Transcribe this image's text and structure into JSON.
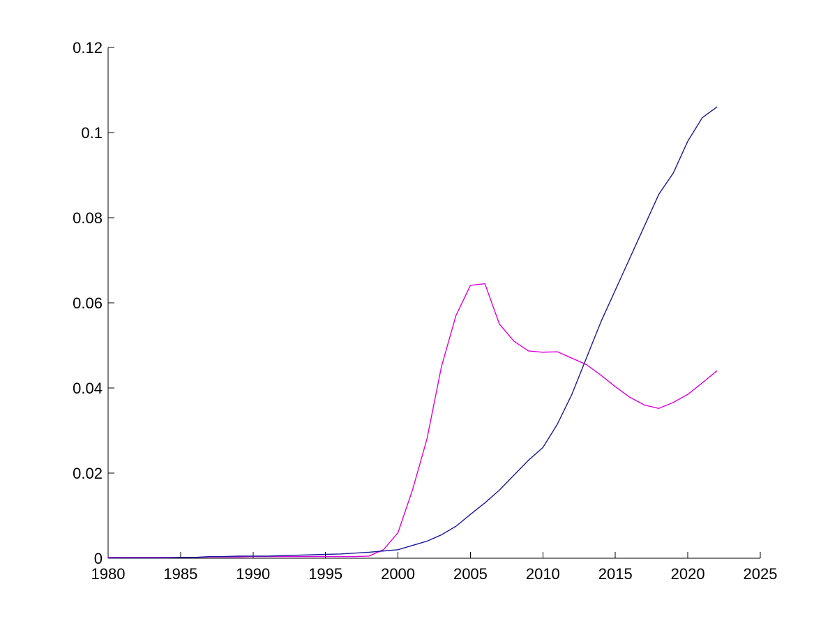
{
  "figure": {
    "background_color": "#ffffff",
    "axis_color": "#000000"
  },
  "chart_data": {
    "type": "line",
    "title": "",
    "xlabel": "",
    "ylabel": "",
    "xlim": [
      1980,
      2025
    ],
    "ylim": [
      0,
      0.12
    ],
    "grid": false,
    "legend": null,
    "box": false,
    "xticks": [
      1980,
      1985,
      1990,
      1995,
      2000,
      2005,
      2010,
      2015,
      2020,
      2025
    ],
    "x_tick_labels": [
      "1980",
      "1985",
      "1990",
      "1995",
      "2000",
      "2005",
      "2010",
      "2015",
      "2020",
      "2025"
    ],
    "yticks": [
      0,
      0.02,
      0.04,
      0.06,
      0.08,
      0.1,
      0.12
    ],
    "y_tick_labels": [
      "0",
      "0.02",
      "0.04",
      "0.06",
      "0.08",
      "0.1",
      "0.12"
    ],
    "x": [
      1980,
      1981,
      1982,
      1983,
      1984,
      1985,
      1986,
      1987,
      1988,
      1989,
      1990,
      1991,
      1992,
      1993,
      1994,
      1995,
      1996,
      1997,
      1998,
      1999,
      2000,
      2001,
      2002,
      2003,
      2004,
      2005,
      2006,
      2007,
      2008,
      2009,
      2010,
      2011,
      2012,
      2013,
      2014,
      2015,
      2016,
      2017,
      2018,
      2019,
      2020,
      2021,
      2022
    ],
    "series": [
      {
        "name": "magenta",
        "color": "#e000e0",
        "values": [
          0.0002,
          0.0002,
          0.0002,
          0.0002,
          0.0002,
          0.0002,
          0.0002,
          0.0003,
          0.0003,
          0.0003,
          0.0004,
          0.0004,
          0.0004,
          0.0004,
          0.0004,
          0.0004,
          0.0004,
          0.0004,
          0.0005,
          0.002,
          0.006,
          0.016,
          0.028,
          0.045,
          0.057,
          0.0641,
          0.0645,
          0.055,
          0.051,
          0.0487,
          0.0484,
          0.0485,
          0.047,
          0.0455,
          0.043,
          0.0403,
          0.0378,
          0.036,
          0.0352,
          0.0366,
          0.0385,
          0.0412,
          0.044
        ]
      },
      {
        "name": "navy",
        "color": "#1a1a9a",
        "values": [
          5e-05,
          0.0001,
          0.0001,
          0.0001,
          0.0001,
          0.0002,
          0.0002,
          0.0004,
          0.0004,
          0.0005,
          0.0005,
          0.0005,
          0.0006,
          0.0007,
          0.0008,
          0.0009,
          0.001,
          0.0012,
          0.0014,
          0.0017,
          0.002,
          0.003,
          0.004,
          0.0055,
          0.0075,
          0.0103,
          0.013,
          0.016,
          0.0195,
          0.023,
          0.026,
          0.0315,
          0.0385,
          0.047,
          0.0555,
          0.063,
          0.0705,
          0.078,
          0.0855,
          0.0905,
          0.098,
          0.1035,
          0.106
        ]
      }
    ]
  }
}
